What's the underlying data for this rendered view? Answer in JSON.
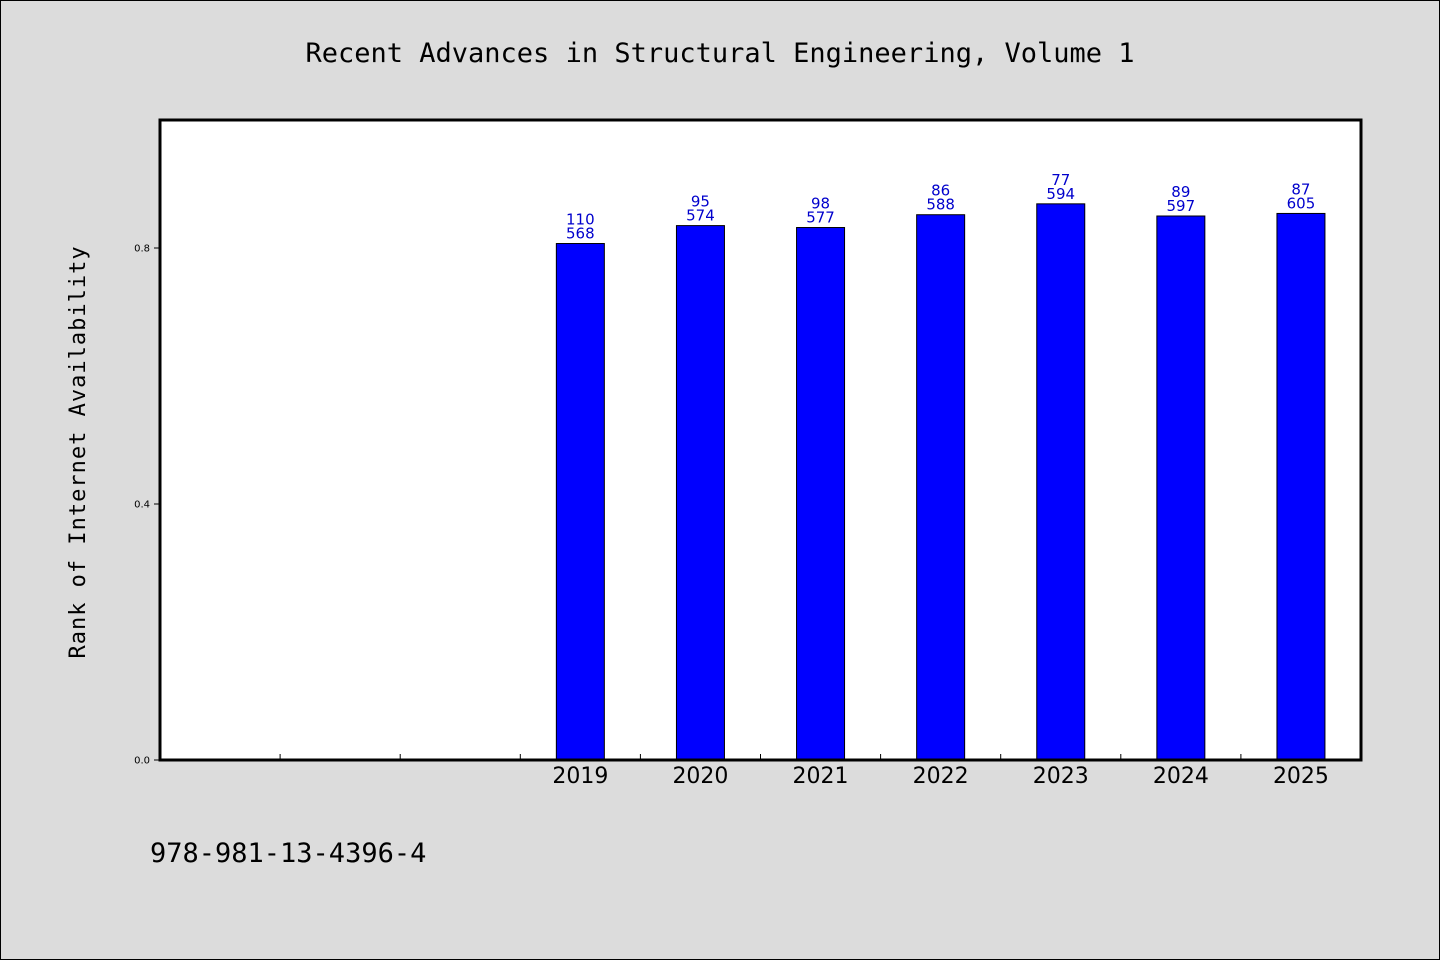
{
  "chart_data": {
    "type": "bar",
    "title": "Recent Advances in Structural Engineering, Volume 1",
    "xlabel": "",
    "ylabel": "Rank of Internet Availability",
    "categories": [
      "",
      "",
      "",
      "2019",
      "2020",
      "2021",
      "2022",
      "2023",
      "2024",
      "2025"
    ],
    "values": [
      null,
      null,
      null,
      0.807,
      0.835,
      0.832,
      0.852,
      0.869,
      0.85,
      0.854
    ],
    "bar_labels": [
      null,
      null,
      null,
      [
        "110",
        "568"
      ],
      [
        "95",
        "574"
      ],
      [
        "98",
        "577"
      ],
      [
        "86",
        "588"
      ],
      [
        "77",
        "594"
      ],
      [
        "89",
        "597"
      ],
      [
        "87",
        "605"
      ]
    ],
    "yticks": [
      0.0,
      0.4,
      0.8
    ],
    "ytick_labels": [
      "0.0",
      "0.4",
      "0.8"
    ],
    "ylim": [
      0,
      1.0
    ],
    "grid": false,
    "legend": "none",
    "colors": {
      "bar_fill": "#0000ff",
      "bar_stroke": "#000000",
      "bar_label": "#0000cc",
      "plot_background": "#ffffff",
      "page_background": "#dcdcdc"
    }
  },
  "footer": {
    "isbn": "978-981-13-4396-4"
  }
}
